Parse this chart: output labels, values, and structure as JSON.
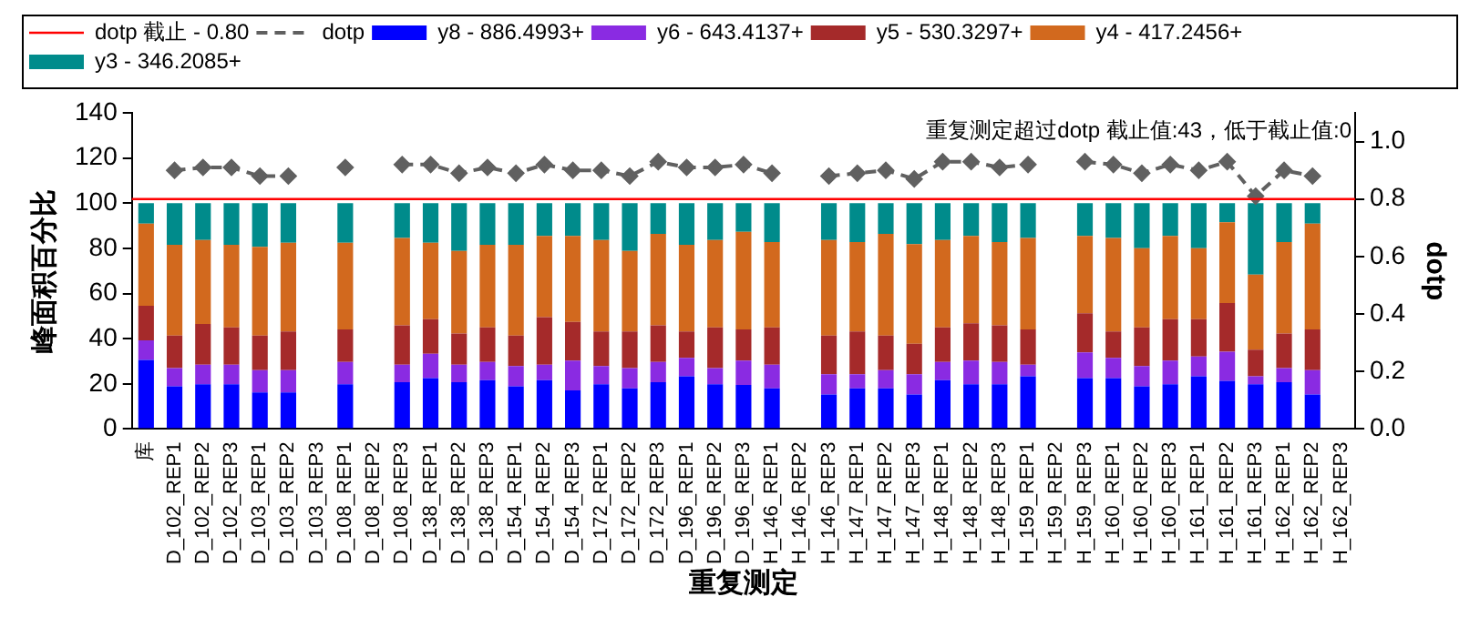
{
  "chart_data": {
    "type": "bar",
    "stacked": true,
    "xlabel": "重复测定",
    "ylabel": "峰面积百分比",
    "y2label": "dotp",
    "categories": [
      "库",
      "D_102_REP1",
      "D_102_REP2",
      "D_102_REP3",
      "D_103_REP1",
      "D_103_REP2",
      "D_103_REP3",
      "D_108_REP1",
      "D_108_REP2",
      "D_108_REP3",
      "D_138_REP1",
      "D_138_REP2",
      "D_138_REP3",
      "D_154_REP1",
      "D_154_REP2",
      "D_154_REP3",
      "D_172_REP1",
      "D_172_REP2",
      "D_172_REP3",
      "D_196_REP1",
      "D_196_REP2",
      "D_196_REP3",
      "H_146_REP1",
      "H_146_REP2",
      "H_146_REP3",
      "H_147_REP1",
      "H_147_REP2",
      "H_147_REP3",
      "H_148_REP1",
      "H_148_REP2",
      "H_148_REP3",
      "H_159_REP1",
      "H_159_REP2",
      "H_159_REP3",
      "H_160_REP1",
      "H_160_REP2",
      "H_160_REP3",
      "H_161_REP1",
      "H_161_REP2",
      "H_161_REP3",
      "H_162_REP1",
      "H_162_REP2",
      "H_162_REP3"
    ],
    "series": [
      {
        "name": "y8 - 886.4993+",
        "color": "#0000ff",
        "values": [
          30.6,
          18.9,
          19.8,
          19.8,
          16.2,
          16.2,
          null,
          19.8,
          null,
          20.7,
          22.5,
          20.7,
          21.6,
          18.9,
          21.6,
          17.1,
          19.8,
          18,
          20.7,
          23.4,
          19.8,
          19.5,
          18,
          null,
          15.3,
          18,
          18,
          15.3,
          21.6,
          19.8,
          19.8,
          23.4,
          null,
          22.5,
          22.5,
          18.9,
          19.8,
          23.4,
          21.3,
          19.8,
          20.7,
          15.3,
          null
        ]
      },
      {
        "name": "y6 - 643.4137+",
        "color": "#8a2be2",
        "values": [
          8.7,
          8.1,
          8.7,
          8.7,
          9.9,
          9.9,
          null,
          9.9,
          null,
          7.8,
          10.8,
          7.8,
          8.1,
          9,
          6.9,
          13.2,
          8.1,
          9,
          9,
          8.1,
          7.2,
          10.8,
          10.5,
          null,
          9,
          6.3,
          8.1,
          9,
          8.1,
          10.5,
          9.9,
          5.1,
          null,
          11.4,
          9,
          9,
          10.5,
          8.7,
          12.9,
          3.6,
          6.3,
          10.8,
          null
        ]
      },
      {
        "name": "y5 - 530.3297+",
        "color": "#a52a2a",
        "values": [
          15.3,
          14.4,
          18,
          16.5,
          15.3,
          17.1,
          null,
          14.4,
          null,
          17.4,
          15.3,
          13.8,
          15.3,
          13.5,
          21,
          17.1,
          15.3,
          16.2,
          16.2,
          11.7,
          18,
          13.8,
          16.5,
          null,
          17.1,
          18.9,
          15.3,
          13.5,
          15.3,
          16.5,
          16.2,
          15.6,
          null,
          17.4,
          11.7,
          17.1,
          18.3,
          16.5,
          21.6,
          11.7,
          15.3,
          18,
          null
        ]
      },
      {
        "name": "y4 - 417.2456+",
        "color": "#d2691e",
        "values": [
          36.3,
          40.2,
          37.2,
          36.6,
          39.3,
          39.3,
          null,
          38.4,
          null,
          38.7,
          33.9,
          36.6,
          36.6,
          40.2,
          36,
          38.1,
          40.5,
          35.7,
          40.5,
          38.4,
          38.7,
          43.2,
          37.8,
          null,
          42.3,
          39.6,
          45,
          44.1,
          38.7,
          38.7,
          36.9,
          40.5,
          null,
          34.2,
          41.4,
          35.1,
          36.9,
          31.5,
          35.7,
          33.3,
          40.5,
          46.8,
          null
        ]
      },
      {
        "name": "y3 - 346.2085+",
        "color": "#008b8b",
        "values": [
          9.1,
          18.4,
          16.3,
          18.4,
          19.3,
          17.5,
          null,
          17.5,
          null,
          15.4,
          17.5,
          21.1,
          18.4,
          18.4,
          14.5,
          14.5,
          16.3,
          21.1,
          13.6,
          18.4,
          16.3,
          12.7,
          17.2,
          null,
          16.3,
          17.2,
          13.6,
          18.1,
          16.3,
          14.5,
          17.2,
          15.4,
          null,
          14.5,
          15.4,
          19.9,
          14.5,
          19.9,
          8.5,
          31.6,
          17.2,
          9.1,
          null
        ]
      },
      {
        "name": "dotp",
        "type": "line",
        "axis": "y2",
        "color": "#606060",
        "line_style": "dashed",
        "marker": "diamond",
        "values": [
          null,
          0.9,
          0.91,
          0.91,
          0.88,
          0.88,
          null,
          0.91,
          null,
          0.92,
          0.92,
          0.89,
          0.91,
          0.89,
          0.92,
          0.9,
          0.9,
          0.88,
          0.93,
          0.91,
          0.91,
          0.92,
          0.89,
          null,
          0.88,
          0.89,
          0.9,
          0.87,
          0.93,
          0.93,
          0.91,
          0.92,
          null,
          0.93,
          0.92,
          0.89,
          0.92,
          0.9,
          0.93,
          0.81,
          0.9,
          0.88,
          null
        ]
      }
    ],
    "ylim": [
      0,
      140
    ],
    "yticks": [
      0,
      20,
      40,
      60,
      80,
      100,
      120,
      140
    ],
    "y2lim": [
      0,
      1.1
    ],
    "y2ticks": [
      {
        "value": 0,
        "label": "0.0"
      },
      {
        "value": 0.2,
        "label": "0.2"
      },
      {
        "value": 0.4,
        "label": "0.4"
      },
      {
        "value": 0.6,
        "label": "0.6"
      },
      {
        "value": 0.8,
        "label": "0.8"
      },
      {
        "value": 1,
        "label": "1.0"
      }
    ],
    "ref_lines": [
      {
        "axis": "y2",
        "value": 0.8,
        "label": "dotp 截止 - 0.80",
        "color": "#ff0000"
      }
    ],
    "annotations": [
      "重复测定超过dotp 截止值:43，低于截止值:0"
    ],
    "legend": "top",
    "grid": false
  }
}
